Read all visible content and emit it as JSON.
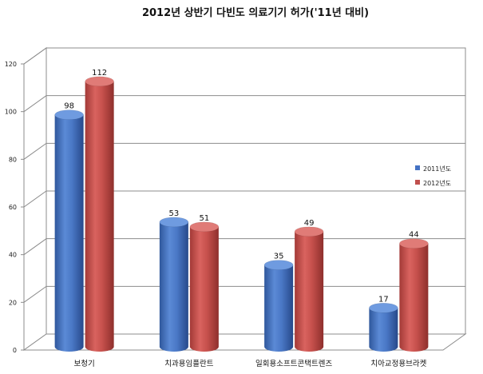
{
  "chart_data": {
    "type": "bar",
    "title": "2012년 상반기 다빈도 의료기기 허가('11년 대비)",
    "categories": [
      "보청기",
      "치과용임플란트",
      "일회용소프트콘택트렌즈",
      "치아교정용브라켓"
    ],
    "series": [
      {
        "name": "2011년도",
        "values": [
          98,
          53,
          35,
          17
        ],
        "color": "#4472c4"
      },
      {
        "name": "2012년도",
        "values": [
          112,
          51,
          49,
          44
        ],
        "color": "#c0504d"
      }
    ],
    "ylim": [
      0,
      120
    ],
    "yticks": [
      0,
      20,
      40,
      60,
      80,
      100,
      120
    ],
    "grid": true,
    "legend_position": "right",
    "style": "3d-cylinder"
  }
}
